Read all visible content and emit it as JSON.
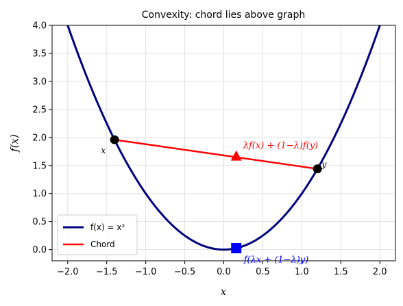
{
  "chart_data": {
    "type": "line",
    "title": "Convexity: chord lies above graph",
    "xlabel": "x",
    "ylabel": "f(x)",
    "xlim": [
      -2.2,
      2.2
    ],
    "ylim": [
      -0.2,
      4.0
    ],
    "grid": true,
    "legend_position": "lower-left",
    "xticks": [
      -2.0,
      -1.5,
      -1.0,
      -0.5,
      0.0,
      0.5,
      1.0,
      1.5,
      2.0
    ],
    "xtick_labels": [
      "−2.0",
      "−1.5",
      "−1.0",
      "−0.5",
      "0.0",
      "0.5",
      "1.0",
      "1.5",
      "2.0"
    ],
    "yticks": [
      0.0,
      0.5,
      1.0,
      1.5,
      2.0,
      2.5,
      3.0,
      3.5,
      4.0
    ],
    "ytick_labels": [
      "0.0",
      "0.5",
      "1.0",
      "1.5",
      "2.0",
      "2.5",
      "3.0",
      "3.5",
      "4.0"
    ],
    "series": [
      {
        "name": "f(x) = x²",
        "function": "x^2",
        "x_range": [
          -2.2,
          2.2
        ],
        "color": "#000080"
      },
      {
        "name": "Chord",
        "x": [
          -1.4,
          1.2
        ],
        "y": [
          1.96,
          1.44
        ],
        "color": "#ff0000"
      }
    ],
    "points": [
      {
        "label": "x",
        "x": -1.4,
        "y": 1.96,
        "color": "#000000",
        "marker": "circle"
      },
      {
        "label": "y",
        "x": 1.2,
        "y": 1.44,
        "color": "#000000",
        "marker": "circle"
      },
      {
        "label": "λf(x) + (1−λ)f(y)",
        "x": 0.16,
        "y": 1.66,
        "color": "#ff0000",
        "marker": "triangle"
      },
      {
        "label": "f(λx + (1−λ)y)",
        "x": 0.16,
        "y": 0.0256,
        "color": "#0000ff",
        "marker": "square"
      }
    ]
  }
}
